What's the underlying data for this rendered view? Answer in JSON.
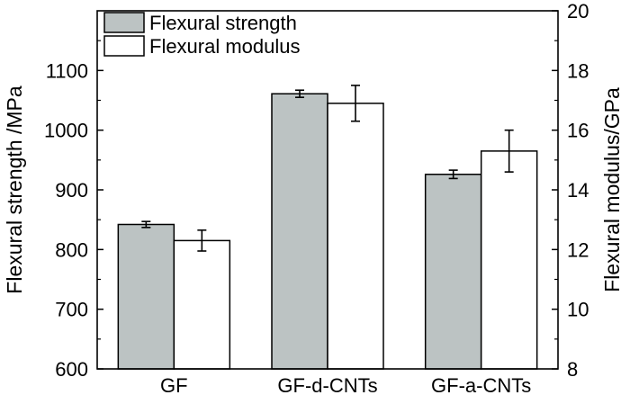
{
  "chart_data": {
    "type": "bar",
    "categories": [
      "GF",
      "GF-d-CNTs",
      "GF-a-CNTs"
    ],
    "series": [
      {
        "name": "Flexural strength",
        "axis": "left",
        "values": [
          842,
          1061,
          926
        ],
        "errors": [
          5,
          6,
          7
        ],
        "color": "#bcc3c3"
      },
      {
        "name": "Flexural modulus",
        "axis": "right",
        "values": [
          12.3,
          16.9,
          15.3
        ],
        "errors": [
          0.35,
          0.6,
          0.7
        ],
        "color": "#ffffff"
      }
    ],
    "ylabel": "Flexural strength /MPa",
    "y2label": "Flexural modulus/GPa",
    "ylim": [
      600,
      1200
    ],
    "y2lim": [
      8,
      20
    ],
    "yticks": [
      "600",
      "700",
      "800",
      "900",
      "1000",
      "1100"
    ],
    "y2ticks": [
      "8",
      "10",
      "12",
      "14",
      "16",
      "18",
      "20"
    ],
    "legend_position": "top-left",
    "grid": false
  }
}
